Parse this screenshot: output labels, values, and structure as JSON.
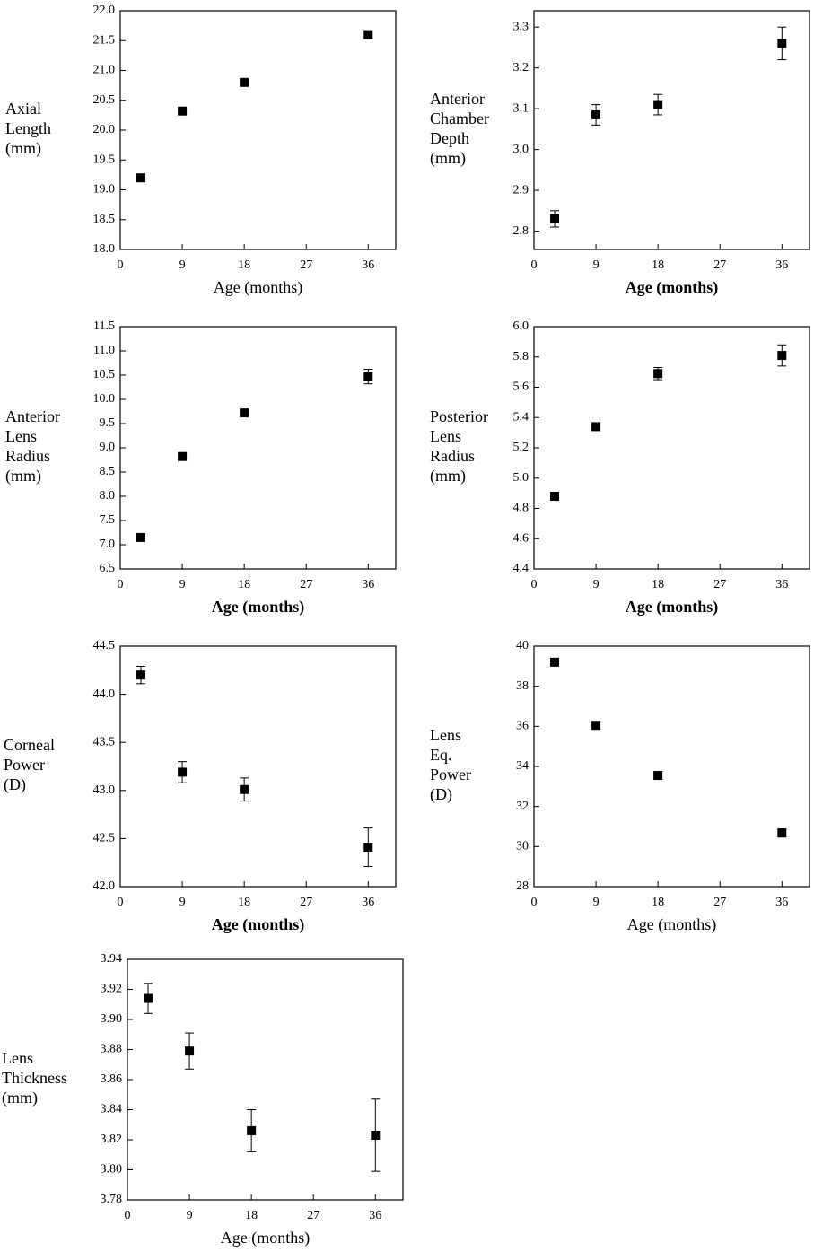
{
  "chart_data": [
    {
      "type": "scatter",
      "ylabel": [
        "Axial",
        "Length",
        "(mm)"
      ],
      "xlabel": "Age (months)",
      "xlabel_weight": "normal",
      "x": [
        3,
        9,
        18,
        36
      ],
      "values": [
        19.2,
        20.32,
        20.8,
        21.6
      ],
      "errors": [
        0.03,
        0.03,
        0.03,
        0.06
      ],
      "xlim": [
        0,
        40
      ],
      "xticks": [
        0,
        9,
        18,
        27,
        36
      ],
      "ylim": [
        18,
        22
      ],
      "yticks": [
        {
          "value": 18,
          "label": "18.0"
        },
        18.5,
        {
          "value": 19,
          "label": "19.0"
        },
        19.5,
        {
          "value": 20,
          "label": "20.0"
        },
        20.5,
        {
          "value": 21,
          "label": "21.0"
        },
        21.5,
        {
          "value": 22,
          "label": "22.0"
        }
      ],
      "color": "#000000"
    },
    {
      "type": "scatter",
      "ylabel": [
        "Anterior",
        "Chamber",
        "Depth",
        "(mm)"
      ],
      "xlabel": "Age (months)",
      "xlabel_weight": "bold",
      "x": [
        3,
        9,
        18,
        36
      ],
      "values": [
        2.83,
        3.085,
        3.11,
        3.26
      ],
      "errors": [
        0.02,
        0.025,
        0.025,
        0.04
      ],
      "xlim": [
        0,
        40
      ],
      "xticks": [
        0,
        9,
        18,
        27,
        36
      ],
      "ylim": [
        2.755,
        3.34
      ],
      "yticks": [
        2.8,
        2.9,
        {
          "value": 3,
          "label": "3.0"
        },
        3.1,
        3.2,
        3.3
      ],
      "color": "#000000"
    },
    {
      "type": "scatter",
      "ylabel": [
        "Anterior",
        "Lens",
        "Radius",
        "(mm)"
      ],
      "xlabel": "Age (months)",
      "xlabel_weight": "bold",
      "x": [
        3,
        9,
        18,
        36
      ],
      "values": [
        7.15,
        8.82,
        9.72,
        10.47
      ],
      "errors": [
        0.03,
        0.03,
        0.04,
        0.15
      ],
      "xlim": [
        0,
        40
      ],
      "xticks": [
        0,
        9,
        18,
        27,
        36
      ],
      "ylim": [
        6.5,
        11.5
      ],
      "yticks": [
        6.5,
        {
          "value": 7,
          "label": "7.0"
        },
        7.5,
        {
          "value": 8,
          "label": "8.0"
        },
        8.5,
        {
          "value": 9,
          "label": "9.0"
        },
        9.5,
        {
          "value": 10,
          "label": "10.0"
        },
        10.5,
        {
          "value": 11,
          "label": "11.0"
        },
        11.5
      ],
      "color": "#000000"
    },
    {
      "type": "scatter",
      "ylabel": [
        "Posterior",
        "Lens",
        "Radius",
        "(mm)"
      ],
      "xlabel": "Age (months)",
      "xlabel_weight": "bold",
      "x": [
        3,
        9,
        18,
        36
      ],
      "values": [
        4.88,
        5.34,
        5.69,
        5.81
      ],
      "errors": [
        0.01,
        0.01,
        0.04,
        0.07
      ],
      "xlim": [
        0,
        40
      ],
      "xticks": [
        0,
        9,
        18,
        27,
        36
      ],
      "ylim": [
        4.4,
        6
      ],
      "yticks": [
        4.4,
        4.6,
        4.8,
        {
          "value": 5,
          "label": "5.0"
        },
        5.2,
        5.4,
        5.6,
        5.8,
        {
          "value": 6,
          "label": "6.0"
        }
      ],
      "color": "#000000"
    },
    {
      "type": "scatter",
      "ylabel": [
        "Corneal",
        "Power",
        "(D)"
      ],
      "xlabel": "Age (months)",
      "xlabel_weight": "bold",
      "x": [
        3,
        9,
        18,
        36
      ],
      "values": [
        44.2,
        43.19,
        43.01,
        42.41
      ],
      "errors": [
        0.09,
        0.11,
        0.12,
        0.2
      ],
      "xlim": [
        0,
        40
      ],
      "xticks": [
        0,
        9,
        18,
        27,
        36
      ],
      "ylim": [
        42,
        44.5
      ],
      "yticks": [
        {
          "value": 42,
          "label": "42.0"
        },
        42.5,
        {
          "value": 43,
          "label": "43.0"
        },
        43.5,
        {
          "value": 44,
          "label": "44.0"
        },
        44.5
      ],
      "color": "#000000"
    },
    {
      "type": "scatter",
      "ylabel": [
        "Lens",
        "Eq.",
        "Power",
        "(D)"
      ],
      "xlabel": "Age (months)",
      "xlabel_weight": "normal",
      "x": [
        3,
        9,
        18,
        36
      ],
      "values": [
        39.2,
        36.05,
        33.55,
        30.68
      ],
      "errors": [
        0.1,
        0.1,
        0.1,
        0.2
      ],
      "xlim": [
        0,
        40
      ],
      "xticks": [
        0,
        9,
        18,
        27,
        36
      ],
      "ylim": [
        28,
        40
      ],
      "yticks": [
        28,
        30,
        32,
        34,
        36,
        38,
        40
      ],
      "color": "#000000"
    },
    {
      "type": "scatter",
      "ylabel": [
        "Lens",
        "Thickness",
        "(mm)"
      ],
      "xlabel": "Age (months)",
      "xlabel_weight": "normal",
      "x": [
        3,
        9,
        18,
        36
      ],
      "values": [
        3.914,
        3.879,
        3.826,
        3.823
      ],
      "errors": [
        0.01,
        0.012,
        0.014,
        0.024
      ],
      "xlim": [
        0,
        40
      ],
      "xticks": [
        0,
        9,
        18,
        27,
        36
      ],
      "ylim": [
        3.78,
        3.94
      ],
      "yticks": [
        3.78,
        {
          "value": 3.8,
          "label": "3.80"
        },
        3.82,
        3.84,
        3.86,
        3.88,
        {
          "value": 3.9,
          "label": "3.90"
        },
        3.92,
        3.94
      ],
      "color": "#000000"
    }
  ]
}
